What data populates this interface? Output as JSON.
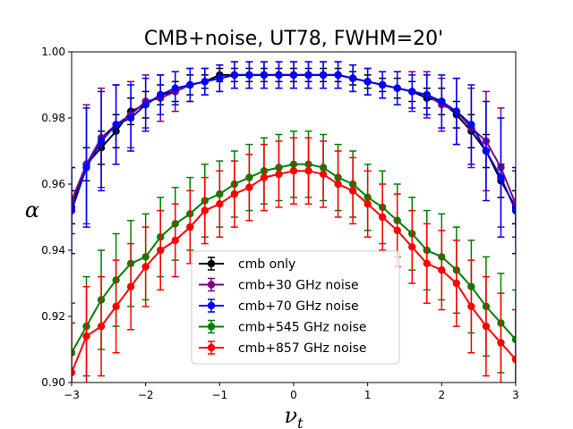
{
  "chart_data": {
    "type": "line",
    "title": "CMB+noise, UT78, FWHM=20'",
    "xlabel": "ν",
    "xlabel_sub": "t",
    "ylabel": "α",
    "xlim": [
      -3,
      3
    ],
    "ylim": [
      0.9,
      1.0
    ],
    "xticks": [
      -3,
      -2,
      -1,
      0,
      1,
      2,
      3
    ],
    "xtick_labels": [
      "−3",
      "−2",
      "−1",
      "0",
      "1",
      "2",
      "3"
    ],
    "yticks": [
      0.9,
      0.92,
      0.94,
      0.96,
      0.98,
      1.0
    ],
    "ytick_labels": [
      "0.90",
      "0.92",
      "0.94",
      "0.96",
      "0.98",
      "1.00"
    ],
    "legend_position": "lower-center",
    "x": [
      -3.0,
      -2.8,
      -2.6,
      -2.4,
      -2.2,
      -2.0,
      -1.8,
      -1.6,
      -1.4,
      -1.2,
      -1.0,
      -0.8,
      -0.6,
      -0.4,
      -0.2,
      0.0,
      0.2,
      0.4,
      0.6,
      0.8,
      1.0,
      1.2,
      1.4,
      1.6,
      1.8,
      2.0,
      2.2,
      2.4,
      2.6,
      2.8,
      3.0
    ],
    "series": [
      {
        "name": "cmb only",
        "color": "#000000",
        "values": [
          0.953,
          0.966,
          0.971,
          0.976,
          0.982,
          0.984,
          0.987,
          0.988,
          0.99,
          0.991,
          0.993,
          0.993,
          0.993,
          0.993,
          0.993,
          0.993,
          0.993,
          0.993,
          0.993,
          0.992,
          0.991,
          0.99,
          0.989,
          0.988,
          0.986,
          0.985,
          0.981,
          0.976,
          0.97,
          0.961,
          0.953
        ],
        "errors": [
          0.005,
          0.005,
          0.005,
          0.005,
          0.004,
          0.004,
          0.003,
          0.003,
          0.003,
          0.002,
          0.002,
          0.002,
          0.002,
          0.002,
          0.002,
          0.002,
          0.002,
          0.002,
          0.002,
          0.002,
          0.002,
          0.002,
          0.003,
          0.003,
          0.003,
          0.004,
          0.004,
          0.005,
          0.005,
          0.005,
          0.005
        ]
      },
      {
        "name": "cmb+30 GHz noise",
        "color": "#800080",
        "values": [
          0.955,
          0.966,
          0.974,
          0.978,
          0.981,
          0.985,
          0.986,
          0.988,
          0.99,
          0.991,
          0.992,
          0.993,
          0.993,
          0.993,
          0.993,
          0.993,
          0.993,
          0.993,
          0.993,
          0.992,
          0.991,
          0.99,
          0.989,
          0.988,
          0.987,
          0.984,
          0.982,
          0.977,
          0.973,
          0.965,
          0.954
        ],
        "errors": [
          0.01,
          0.018,
          0.015,
          0.012,
          0.01,
          0.008,
          0.007,
          0.006,
          0.005,
          0.004,
          0.004,
          0.004,
          0.004,
          0.004,
          0.004,
          0.004,
          0.004,
          0.004,
          0.004,
          0.004,
          0.004,
          0.004,
          0.005,
          0.006,
          0.007,
          0.008,
          0.01,
          0.012,
          0.015,
          0.018,
          0.01
        ]
      },
      {
        "name": "cmb+70 GHz noise",
        "color": "#0000ff",
        "values": [
          0.952,
          0.965,
          0.973,
          0.978,
          0.98,
          0.984,
          0.987,
          0.989,
          0.99,
          0.991,
          0.992,
          0.993,
          0.993,
          0.993,
          0.993,
          0.993,
          0.993,
          0.993,
          0.993,
          0.992,
          0.991,
          0.99,
          0.989,
          0.988,
          0.987,
          0.985,
          0.982,
          0.978,
          0.97,
          0.962,
          0.952
        ],
        "errors": [
          0.013,
          0.018,
          0.015,
          0.012,
          0.01,
          0.008,
          0.006,
          0.005,
          0.005,
          0.004,
          0.004,
          0.004,
          0.004,
          0.004,
          0.004,
          0.004,
          0.004,
          0.004,
          0.004,
          0.004,
          0.004,
          0.004,
          0.005,
          0.005,
          0.006,
          0.008,
          0.01,
          0.012,
          0.015,
          0.018,
          0.013
        ]
      },
      {
        "name": "cmb+545 GHz noise",
        "color": "#008000",
        "values": [
          0.909,
          0.917,
          0.925,
          0.931,
          0.936,
          0.938,
          0.944,
          0.948,
          0.951,
          0.955,
          0.957,
          0.96,
          0.962,
          0.964,
          0.965,
          0.966,
          0.966,
          0.965,
          0.962,
          0.96,
          0.956,
          0.953,
          0.949,
          0.945,
          0.94,
          0.938,
          0.934,
          0.929,
          0.923,
          0.918,
          0.913
        ],
        "errors": [
          0.015,
          0.015,
          0.015,
          0.014,
          0.013,
          0.013,
          0.012,
          0.011,
          0.011,
          0.011,
          0.01,
          0.01,
          0.01,
          0.01,
          0.01,
          0.01,
          0.01,
          0.01,
          0.01,
          0.01,
          0.01,
          0.011,
          0.011,
          0.011,
          0.012,
          0.013,
          0.013,
          0.014,
          0.015,
          0.015,
          0.015
        ]
      },
      {
        "name": "cmb+857 GHz noise",
        "color": "#ff0000",
        "values": [
          0.903,
          0.914,
          0.917,
          0.923,
          0.929,
          0.935,
          0.94,
          0.943,
          0.947,
          0.952,
          0.954,
          0.957,
          0.959,
          0.962,
          0.963,
          0.964,
          0.964,
          0.963,
          0.96,
          0.958,
          0.954,
          0.95,
          0.946,
          0.941,
          0.936,
          0.934,
          0.93,
          0.923,
          0.917,
          0.912,
          0.907
        ],
        "errors": [
          0.015,
          0.015,
          0.015,
          0.014,
          0.013,
          0.012,
          0.012,
          0.011,
          0.011,
          0.01,
          0.01,
          0.01,
          0.01,
          0.01,
          0.01,
          0.01,
          0.01,
          0.01,
          0.01,
          0.01,
          0.01,
          0.01,
          0.011,
          0.011,
          0.012,
          0.012,
          0.013,
          0.014,
          0.015,
          0.015,
          0.015
        ]
      }
    ]
  }
}
